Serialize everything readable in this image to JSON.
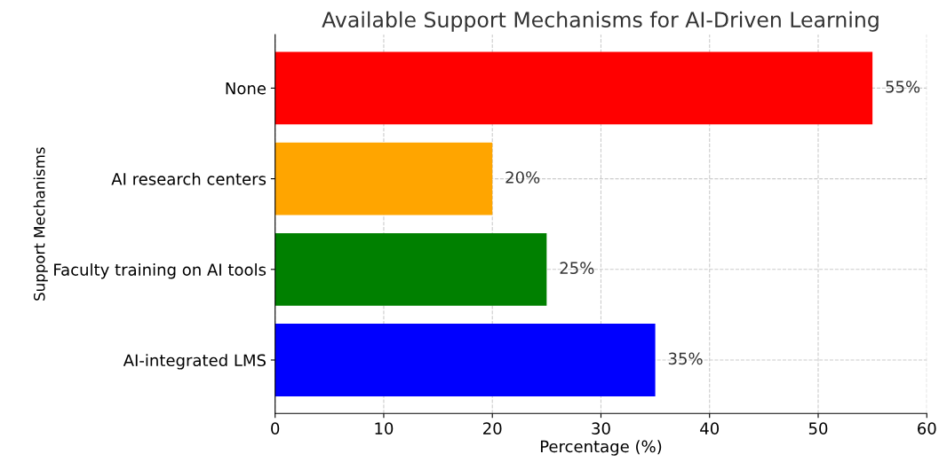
{
  "chart_data": {
    "type": "bar",
    "orientation": "horizontal",
    "title": "Available Support Mechanisms for AI-Driven Learning",
    "xlabel": "Percentage (%)",
    "ylabel": "Support Mechanisms",
    "categories": [
      "None",
      "AI research centers",
      "Faculty training on AI tools",
      "AI-integrated LMS"
    ],
    "values": [
      55,
      20,
      25,
      35
    ],
    "colors": [
      "#ff0000",
      "#ffa500",
      "#008000",
      "#0000ff"
    ],
    "value_labels": [
      "55%",
      "20%",
      "25%",
      "35%"
    ],
    "xlim": [
      0,
      60
    ],
    "xticks": [
      0,
      10,
      20,
      30,
      40,
      50,
      60
    ],
    "grid": true
  }
}
